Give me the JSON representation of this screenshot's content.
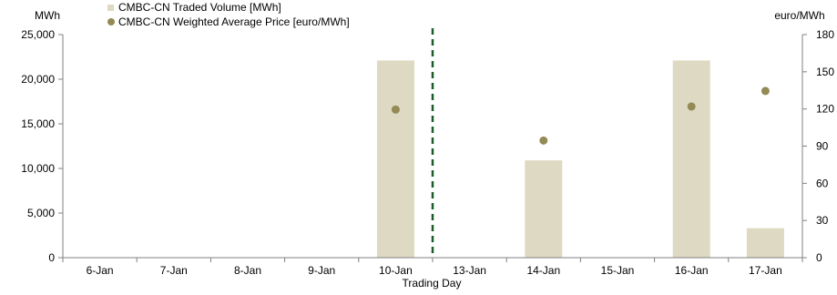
{
  "chart_data": {
    "type": "bar",
    "xlabel": "Trading Day",
    "categories": [
      "6-Jan",
      "7-Jan",
      "8-Jan",
      "9-Jan",
      "10-Jan",
      "13-Jan",
      "14-Jan",
      "15-Jan",
      "16-Jan",
      "17-Jan"
    ],
    "y_left": {
      "unit_label": "MWh",
      "ylim": [
        0,
        25000
      ],
      "ticks": [
        "0",
        "5,000",
        "10,000",
        "15,000",
        "20,000",
        "25,000"
      ]
    },
    "y_right": {
      "unit_label": "euro/MWh",
      "ylim": [
        0,
        180
      ],
      "ticks": [
        "0",
        "30",
        "60",
        "90",
        "120",
        "150",
        "180"
      ]
    },
    "series": [
      {
        "name": "CMBC-CN Traded Volume [MWh]",
        "kind": "bar",
        "axis": "left",
        "color": "#ddd9c3",
        "values": [
          0,
          0,
          0,
          0,
          22100,
          0,
          10900,
          0,
          22100,
          3300
        ]
      },
      {
        "name": "CMBC-CN Weighted Average Price [euro/MWh]",
        "kind": "scatter",
        "axis": "right",
        "color": "#948a54",
        "values": [
          null,
          null,
          null,
          null,
          119.5,
          null,
          94.5,
          null,
          122,
          134.5
        ]
      }
    ],
    "divider_after_category": "10-Jan",
    "divider_color": "#1e5b2a",
    "grid": false,
    "legend_position": "top-left"
  }
}
